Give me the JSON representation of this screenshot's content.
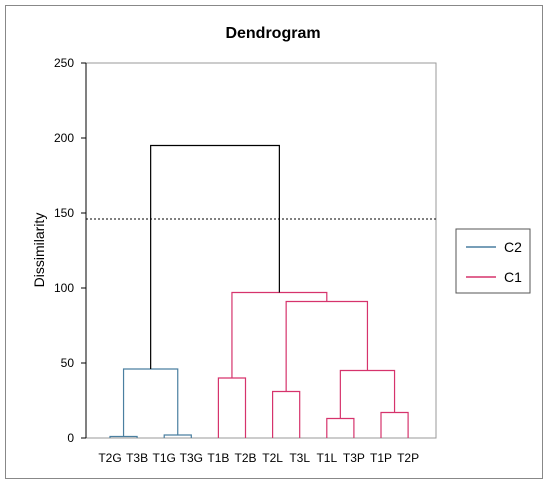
{
  "chart_data": {
    "type": "dendrogram",
    "title": "Dendrogram",
    "ylabel": "Dissimilarity",
    "xlabel": "",
    "ylim": [
      0,
      250
    ],
    "yticks": [
      0,
      50,
      100,
      150,
      200,
      250
    ],
    "grid": false,
    "legend_position": "right",
    "leaves": [
      "T2G",
      "T3B",
      "T1G",
      "T3G",
      "T1B",
      "T2B",
      "T2L",
      "T3L",
      "T1L",
      "T3P",
      "T1P",
      "T2P"
    ],
    "truncation_line": 146,
    "clusters": [
      {
        "name": "C2",
        "color": "#4a7fa0"
      },
      {
        "name": "C1",
        "color": "#d6336c"
      }
    ],
    "root_color": "#000000",
    "merges": [
      {
        "left": "T2G",
        "right": "T3B",
        "height": 1,
        "cluster": "C2"
      },
      {
        "left": "T1G",
        "right": "T3G",
        "height": 2,
        "cluster": "C2"
      },
      {
        "left": "m0",
        "right": "m1",
        "height": 46,
        "cluster": "C2"
      },
      {
        "left": "T1B",
        "right": "T2B",
        "height": 40,
        "cluster": "C1"
      },
      {
        "left": "T2L",
        "right": "T3L",
        "height": 31,
        "cluster": "C1"
      },
      {
        "left": "T1L",
        "right": "T3P",
        "height": 13,
        "cluster": "C1"
      },
      {
        "left": "T1P",
        "right": "T2P",
        "height": 17,
        "cluster": "C1"
      },
      {
        "left": "m5",
        "right": "m6",
        "height": 45,
        "cluster": "C1"
      },
      {
        "left": "m4",
        "right": "m7",
        "height": 91,
        "cluster": "C1"
      },
      {
        "left": "m3",
        "right": "m8",
        "height": 97,
        "cluster": "C1"
      },
      {
        "left": "m2",
        "right": "m9",
        "height": 195,
        "cluster": "root"
      }
    ]
  }
}
